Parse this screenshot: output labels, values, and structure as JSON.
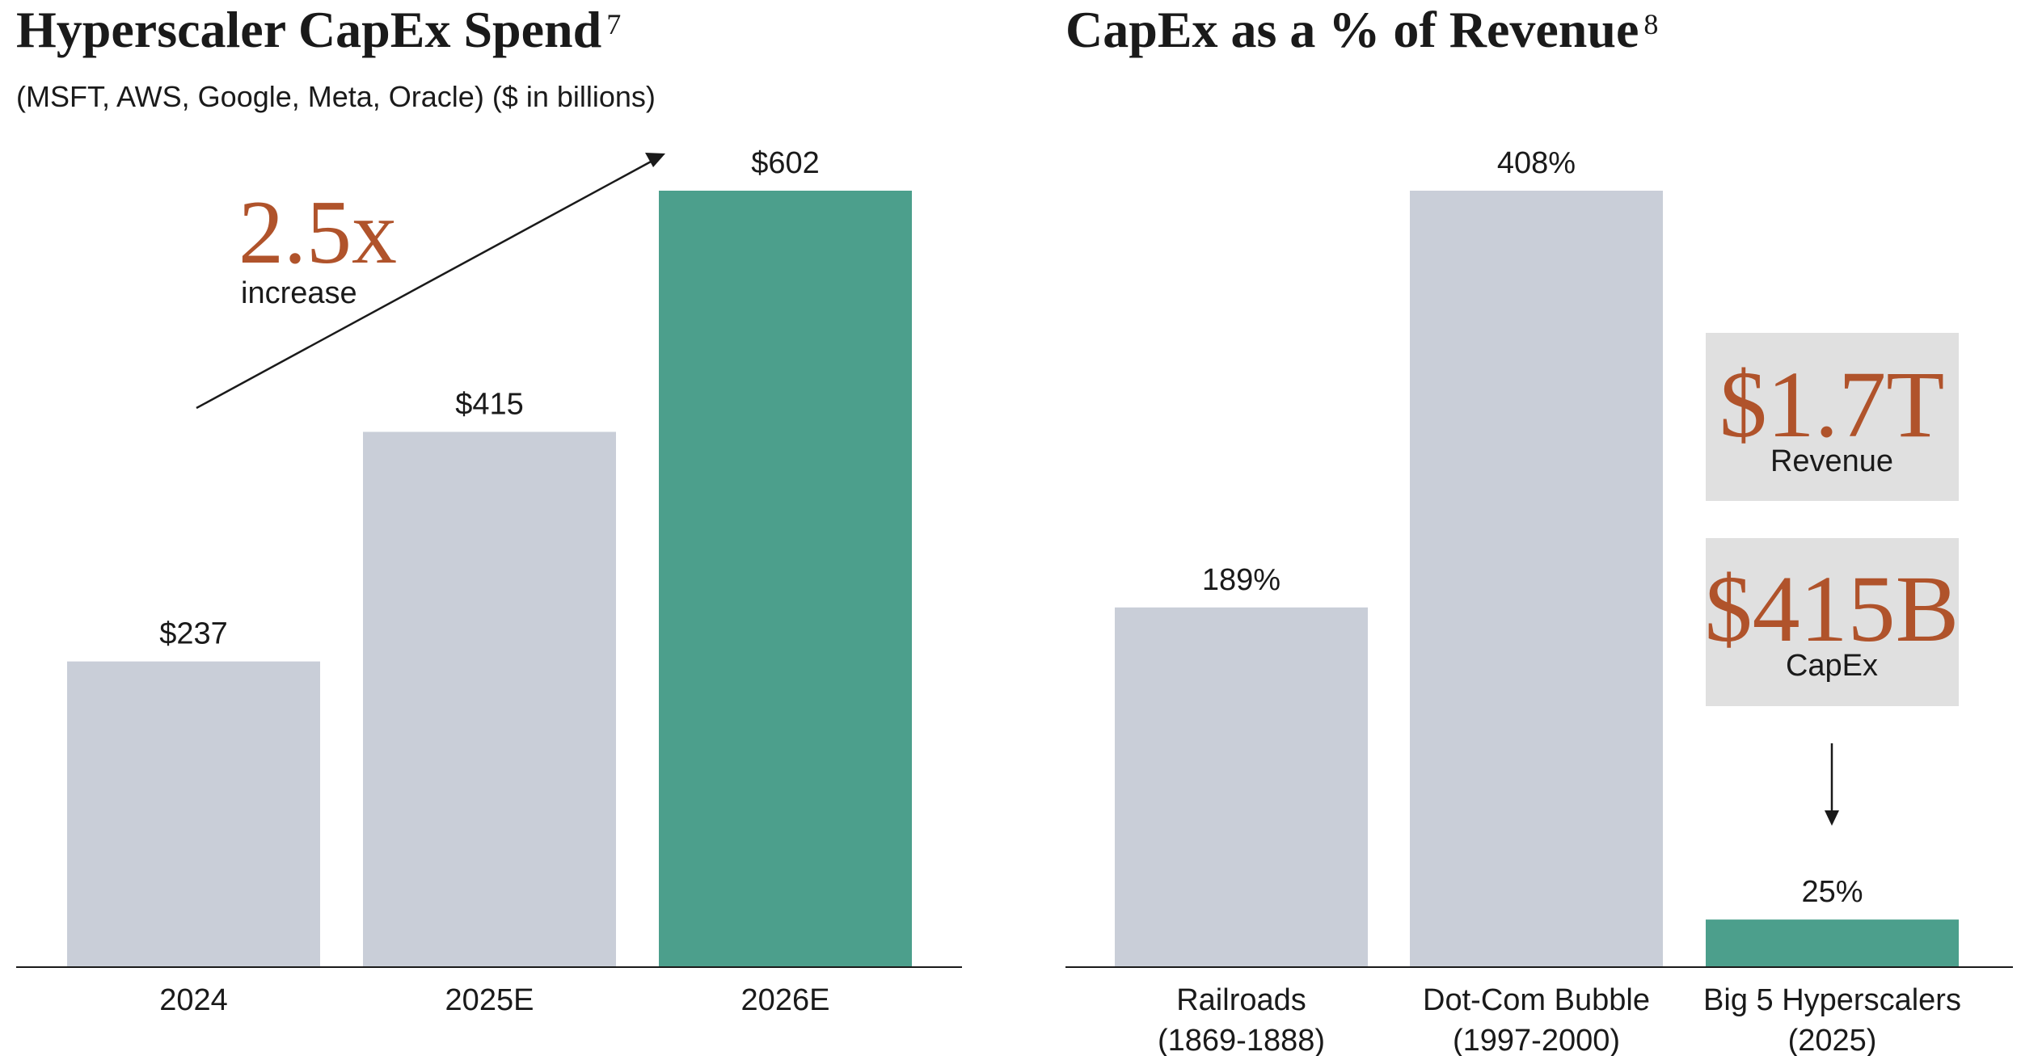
{
  "colors": {
    "grey_bar": "#c9ced8",
    "green_bar": "#4c9f8c",
    "accent": "#b0532b",
    "text": "#1a1a1a",
    "box_fill": "#e0e0e0"
  },
  "chart_data": [
    {
      "type": "bar",
      "title": "Hyperscaler CapEx Spend",
      "title_footnote": "7",
      "subtitle": "(MSFT, AWS, Google, Meta, Oracle) ($ in billions)",
      "categories": [
        "2024",
        "2025E",
        "2026E"
      ],
      "values": [
        237,
        415,
        602
      ],
      "value_labels": [
        "$237",
        "$415",
        "$602"
      ],
      "highlight_index": 2,
      "ylim": [
        0,
        602
      ],
      "annotation": {
        "big": "2.5x",
        "small": "increase"
      }
    },
    {
      "type": "bar",
      "title": "CapEx as a % of Revenue",
      "title_footnote": "8",
      "categories": [
        [
          "Railroads",
          "(1869-1888)"
        ],
        [
          "Dot-Com Bubble",
          "(1997-2000)"
        ],
        [
          "Big 5 Hyperscalers",
          "(2025)"
        ]
      ],
      "values": [
        189,
        408,
        25
      ],
      "value_labels": [
        "189%",
        "408%",
        "25%"
      ],
      "highlight_index": 2,
      "ylim": [
        0,
        408
      ],
      "callouts": [
        {
          "big": "$1.7T",
          "small": "Revenue"
        },
        {
          "big": "$415B",
          "small": "CapEx"
        }
      ]
    }
  ]
}
